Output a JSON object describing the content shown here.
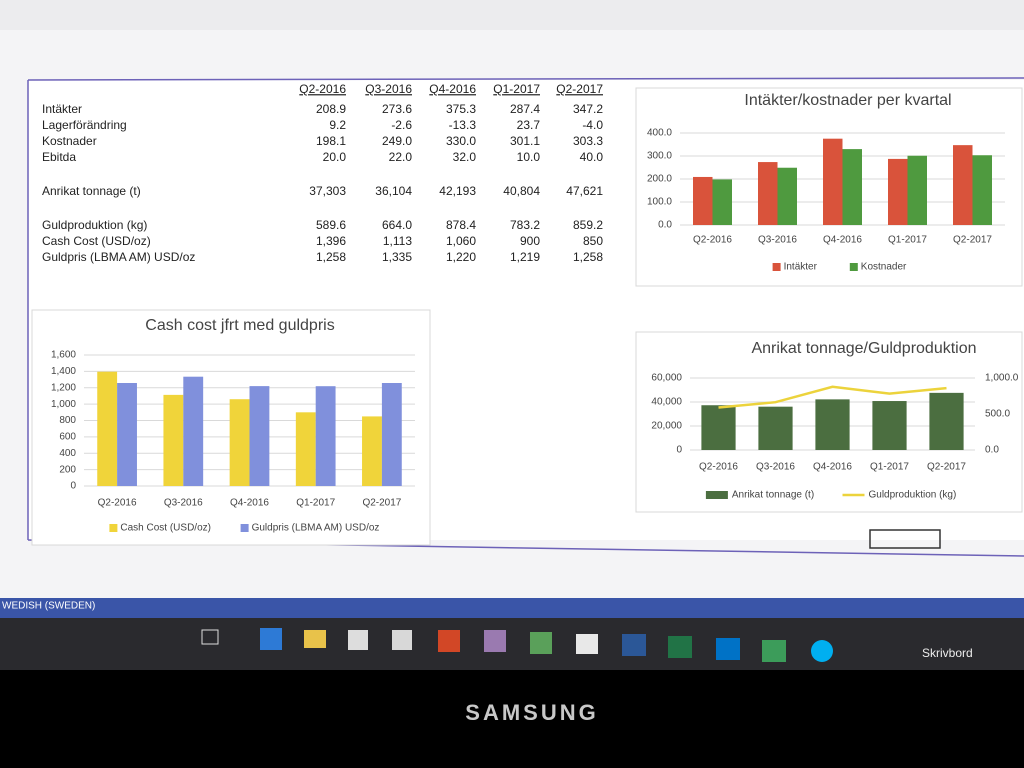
{
  "table": {
    "columns": [
      "Q2-2016",
      "Q3-2016",
      "Q4-2016",
      "Q1-2017",
      "Q2-2017"
    ],
    "rows": [
      {
        "label": "Intäkter",
        "values": [
          "208.9",
          "273.6",
          "375.3",
          "287.4",
          "347.2"
        ]
      },
      {
        "label": "Lagerförändring",
        "values": [
          "9.2",
          "-2.6",
          "-13.3",
          "23.7",
          "-4.0"
        ]
      },
      {
        "label": "Kostnader",
        "values": [
          "198.1",
          "249.0",
          "330.0",
          "301.1",
          "303.3"
        ]
      },
      {
        "label": "Ebitda",
        "values": [
          "20.0",
          "22.0",
          "32.0",
          "10.0",
          "40.0"
        ]
      },
      {
        "label": "Anrikat tonnage (t)",
        "values": [
          "37,303",
          "36,104",
          "42,193",
          "40,804",
          "47,621"
        ]
      },
      {
        "label": "Guldproduktion (kg)",
        "values": [
          "589.6",
          "664.0",
          "878.4",
          "783.2",
          "859.2"
        ]
      },
      {
        "label": "Cash Cost (USD/oz)",
        "values": [
          "1,396",
          "1,113",
          "1,060",
          "900",
          "850"
        ]
      },
      {
        "label": "Guldpris (LBMA AM) USD/oz",
        "values": [
          "1,258",
          "1,335",
          "1,220",
          "1,219",
          "1,258"
        ]
      }
    ]
  },
  "chart_data": [
    {
      "type": "bar",
      "title": "Intäkter/kostnader per kvartal",
      "categories": [
        "Q2-2016",
        "Q3-2016",
        "Q4-2016",
        "Q1-2017",
        "Q2-2017"
      ],
      "series": [
        {
          "name": "Intäkter",
          "color": "#d9533b",
          "values": [
            208.9,
            273.6,
            375.3,
            287.4,
            347.2
          ]
        },
        {
          "name": "Kostnader",
          "color": "#4f9a3f",
          "values": [
            198.1,
            249.0,
            330.0,
            301.1,
            303.3
          ]
        }
      ],
      "ylim": [
        0,
        400
      ],
      "yticks": [
        {
          "value": 0,
          "label": "0.0"
        },
        {
          "value": 100,
          "label": "100.0"
        },
        {
          "value": 200,
          "label": "200.0"
        },
        {
          "value": 300,
          "label": "300.0"
        },
        {
          "value": 400,
          "label": "400.0"
        }
      ],
      "grid": true,
      "legend": "bottom"
    },
    {
      "type": "bar",
      "title": "Cash cost jfrt med guldpris",
      "categories": [
        "Q2-2016",
        "Q3-2016",
        "Q4-2016",
        "Q1-2017",
        "Q2-2017"
      ],
      "series": [
        {
          "name": "Cash Cost (USD/oz)",
          "color": "#f0d43a",
          "values": [
            1396,
            1113,
            1060,
            900,
            850
          ]
        },
        {
          "name": "Guldpris (LBMA AM) USD/oz",
          "color": "#8090dc",
          "values": [
            1258,
            1335,
            1220,
            1219,
            1258
          ]
        }
      ],
      "ylim": [
        0,
        1600
      ],
      "yticks": [
        0,
        200,
        400,
        600,
        800,
        {
          "value": 1000,
          "label": "1,000"
        },
        {
          "value": 1200,
          "label": "1,200"
        },
        {
          "value": 1400,
          "label": "1,400"
        },
        {
          "value": 1600,
          "label": "1,600"
        }
      ],
      "grid": true,
      "legend": "bottom"
    },
    {
      "type": "bar",
      "title": "Anrikat tonnage/Guldproduktion",
      "categories": [
        "Q2-2016",
        "Q3-2016",
        "Q4-2016",
        "Q1-2017",
        "Q2-2017"
      ],
      "series": [
        {
          "name": "Anrikat tonnage (t)",
          "color": "#4b6e40",
          "values": [
            37303,
            36104,
            42193,
            40804,
            47621
          ]
        },
        {
          "name": "Guldproduktion (kg)",
          "color": "#ecd33c",
          "type": "line",
          "axis": "y2",
          "values": [
            589.6,
            664.0,
            878.4,
            783.2,
            859.2
          ]
        }
      ],
      "ylim": [
        0,
        60000
      ],
      "yticks": [
        0,
        {
          "value": 20000,
          "label": "20,000"
        },
        {
          "value": 40000,
          "label": "40,000"
        },
        {
          "value": 60000,
          "label": "60,000"
        }
      ],
      "y2lim": [
        0,
        1000
      ],
      "y2ticks": [
        {
          "value": 0,
          "label": "0.0"
        },
        {
          "value": 500,
          "label": "500.0"
        },
        {
          "value": 1000,
          "label": "1,000.0"
        }
      ],
      "grid": true,
      "legend": "bottom"
    }
  ],
  "status_bar": "WEDISH (SWEDEN)",
  "taskbar": {
    "desktop_label": "Skrivbord"
  },
  "monitor_brand": "SAMSUNG"
}
